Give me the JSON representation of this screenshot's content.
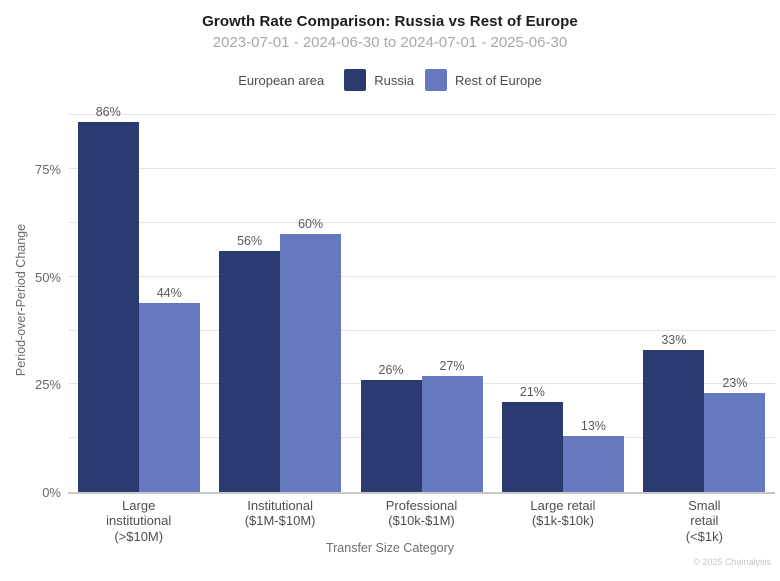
{
  "chart": {
    "title": "Growth Rate Comparison: Russia vs Rest of Europe",
    "subtitle": "2023-07-01 - 2024-06-30 to 2024-07-01 - 2025-06-30",
    "legend": {
      "title": "European area",
      "items": [
        {
          "label": "Russia",
          "color": "#2b3a71"
        },
        {
          "label": "Rest of Europe",
          "color": "#6679bf"
        }
      ]
    },
    "ylabel": "Period-over-Period Change",
    "xlabel": "Transfer Size Category",
    "footer": "© 2025 Chainalysis"
  },
  "chart_data": {
    "type": "bar",
    "title": "Growth Rate Comparison: Russia vs Rest of Europe",
    "subtitle": "2023-07-01 - 2024-06-30 to 2024-07-01 - 2025-06-30",
    "categories": [
      "Large institutional (>$10M)",
      "Institutional ($1M-$10M)",
      "Professional ($10k-$1M)",
      "Large retail ($1k-$10k)",
      "Small retail (<$1k)"
    ],
    "category_lines": [
      [
        "Large",
        "institutional",
        "(>$10M)"
      ],
      [
        "Institutional",
        "($1M-$10M)"
      ],
      [
        "Professional",
        "($10k-$1M)"
      ],
      [
        "Large retail",
        "($1k-$10k)"
      ],
      [
        "Small",
        "retail",
        "(<$1k)"
      ]
    ],
    "series": [
      {
        "name": "Russia",
        "color": "#2b3a71",
        "values": [
          86,
          56,
          26,
          21,
          33
        ]
      },
      {
        "name": "Rest of Europe",
        "color": "#6679bf",
        "values": [
          44,
          60,
          27,
          13,
          23
        ]
      }
    ],
    "value_suffix": "%",
    "xlabel": "Transfer Size Category",
    "ylabel": "Period-over-Period Change",
    "ylim": [
      0,
      89
    ],
    "yticks": [
      0,
      25,
      50,
      75
    ],
    "gridlines": [
      12.5,
      25,
      37.5,
      50,
      62.5,
      75,
      87.5
    ],
    "grid": true,
    "legend_position": "top",
    "legend_title": "European area"
  }
}
